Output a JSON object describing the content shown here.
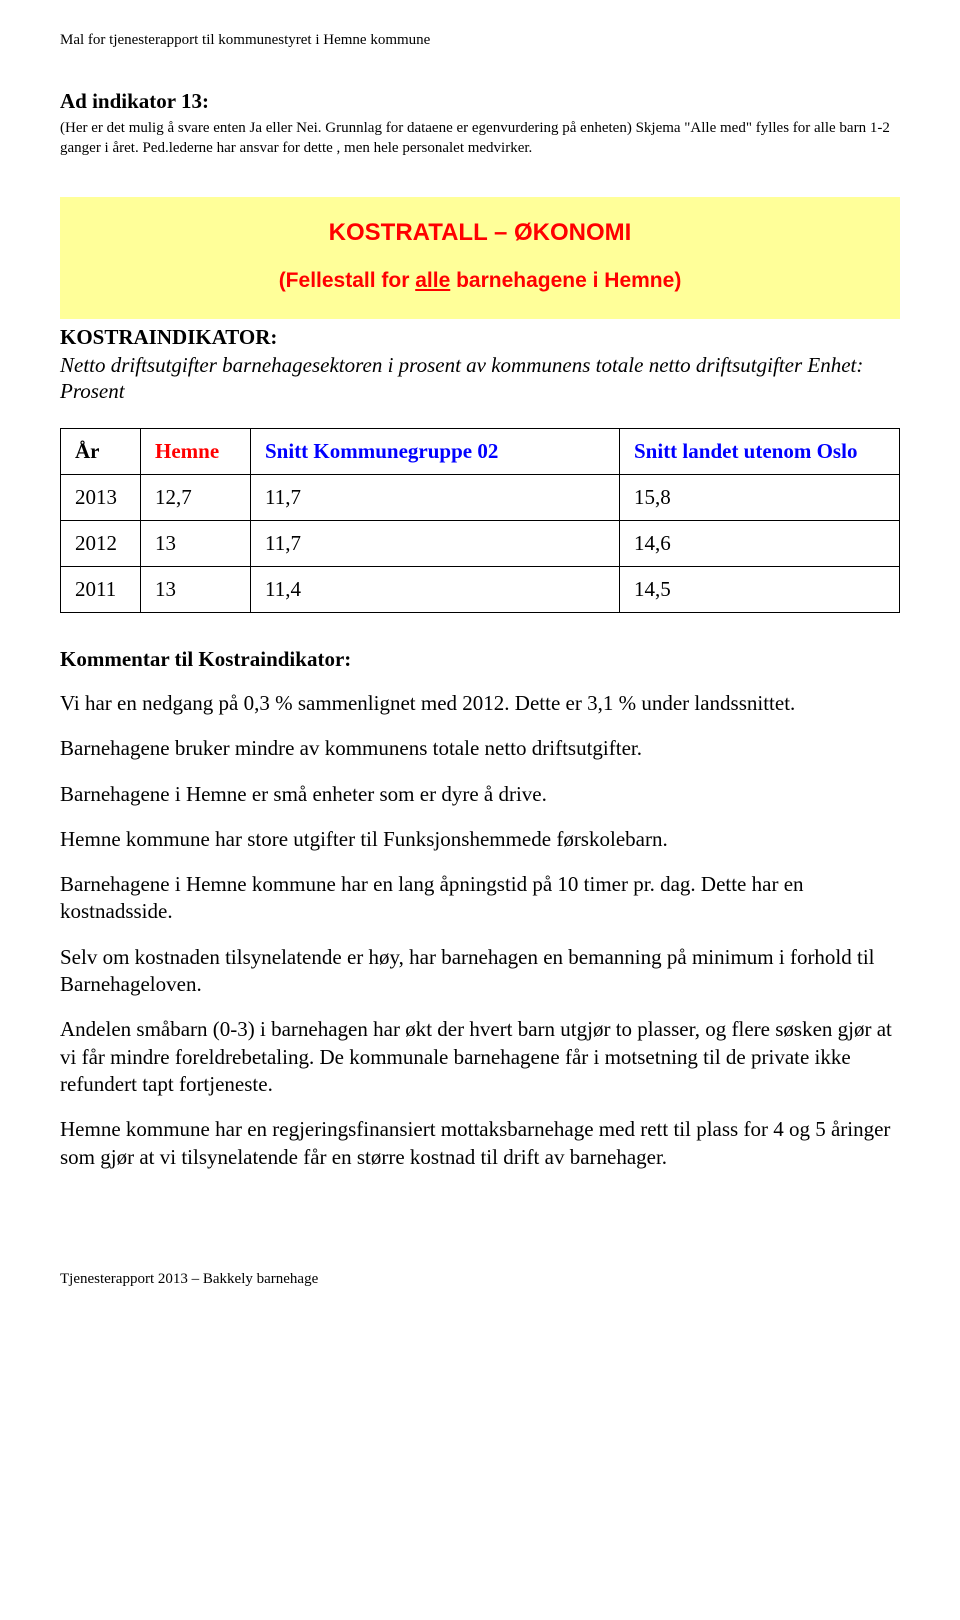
{
  "header": "Mal for tjenesterapport til kommunestyret i Hemne kommune",
  "intro": {
    "heading": "Ad indikator 13:",
    "text": "(Her er det mulig å svare enten Ja eller Nei. Grunnlag for dataene er egenvurdering på enheten) Skjema \"Alle med\" fylles for alle barn 1-2 ganger i året. Ped.lederne har ansvar for dette , men hele personalet medvirker."
  },
  "yellow_box": {
    "title": "KOSTRATALL – ØKONOMI",
    "subtitle_prefix": "(Fellestall for ",
    "subtitle_underline": "alle",
    "subtitle_suffix": " barnehagene i Hemne)"
  },
  "kostra": {
    "label": "KOSTRAINDIKATOR:",
    "desc": "Netto driftsutgifter barnehagesektoren i prosent av kommunens totale netto driftsutgifter Enhet: Prosent"
  },
  "table": {
    "headers": {
      "ar": "År",
      "hemne": "Hemne",
      "kg": "Snitt Kommunegruppe 02",
      "land": "Snitt landet utenom Oslo"
    },
    "rows": [
      {
        "ar": "2013",
        "hemne": "12,7",
        "kg": "11,7",
        "land": "15,8"
      },
      {
        "ar": "2012",
        "hemne": "13",
        "kg": "11,7",
        "land": "14,6"
      },
      {
        "ar": "2011",
        "hemne": "13",
        "kg": "11,4",
        "land": "14,5"
      }
    ]
  },
  "kommentar": {
    "heading": "Kommentar til Kostraindikator:",
    "paras": [
      "Vi har en nedgang på 0,3 % sammenlignet med 2012. Dette er 3,1 % under landssnittet.",
      "Barnehagene bruker mindre av kommunens totale netto driftsutgifter.",
      "Barnehagene i Hemne er små enheter som er dyre å drive.",
      "Hemne kommune har store utgifter til Funksjonshemmede førskolebarn.",
      "Barnehagene i Hemne kommune har en lang åpningstid på 10 timer pr. dag. Dette har en kostnadsside.",
      "Selv om kostnaden tilsynelatende er høy, har barnehagen en bemanning på minimum i forhold til Barnehageloven.",
      "Andelen småbarn (0-3) i barnehagen har økt der hvert barn utgjør to plasser, og flere søsken gjør at vi får mindre foreldrebetaling. De kommunale barnehagene får i motsetning til de private ikke refundert tapt fortjeneste.",
      "Hemne kommune har en regjeringsfinansiert mottaksbarnehage med rett til plass for 4 og 5 åringer som gjør at vi tilsynelatende får en større kostnad til drift av barnehager."
    ]
  },
  "footer": "Tjenesterapport 2013 – Bakkely barnehage"
}
